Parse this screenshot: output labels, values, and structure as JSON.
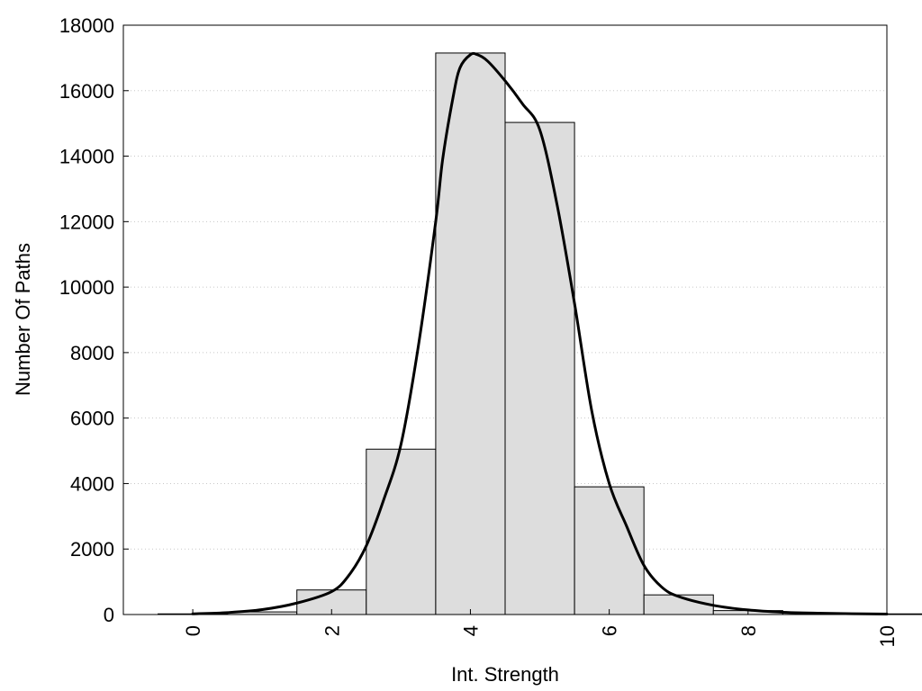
{
  "chart_data": {
    "type": "bar",
    "title": "",
    "xlabel": "Int. Strength",
    "ylabel": "Number Of Paths",
    "xlim": [
      -1,
      10
    ],
    "ylim": [
      0,
      18000
    ],
    "x_ticks": [
      "0",
      "2",
      "4",
      "6",
      "8",
      "10"
    ],
    "y_ticks": [
      "0",
      "2000",
      "4000",
      "6000",
      "8000",
      "10000",
      "12000",
      "14000",
      "16000",
      "18000"
    ],
    "grid": "horizontal dotted",
    "bins": [
      {
        "x": 0,
        "value": 20
      },
      {
        "x": 1,
        "value": 80
      },
      {
        "x": 2,
        "value": 750
      },
      {
        "x": 3,
        "value": 5050
      },
      {
        "x": 4,
        "value": 17150
      },
      {
        "x": 5,
        "value": 15030
      },
      {
        "x": 6,
        "value": 3900
      },
      {
        "x": 7,
        "value": 600
      },
      {
        "x": 8,
        "value": 120
      },
      {
        "x": 9,
        "value": 40
      },
      {
        "x": 10,
        "value": 20
      }
    ],
    "curve": {
      "x": [
        0,
        0.5,
        1,
        1.5,
        2,
        2.25,
        2.5,
        2.75,
        3,
        3.25,
        3.5,
        3.6,
        3.75,
        3.85,
        4,
        4.1,
        4.25,
        4.5,
        4.75,
        5,
        5.25,
        5.5,
        5.75,
        6,
        6.25,
        6.5,
        6.75,
        7,
        7.5,
        8,
        8.5,
        9,
        9.5,
        10
      ],
      "y": [
        20,
        60,
        150,
        350,
        700,
        1200,
        2100,
        3500,
        5200,
        8200,
        12000,
        13900,
        15800,
        16700,
        17100,
        17100,
        16900,
        16300,
        15600,
        14800,
        12500,
        9500,
        6200,
        4000,
        2700,
        1500,
        850,
        550,
        280,
        140,
        70,
        40,
        25,
        15
      ],
      "color": "#000000"
    },
    "bar_fill": "#dddddd",
    "bar_stroke": "#000000"
  }
}
